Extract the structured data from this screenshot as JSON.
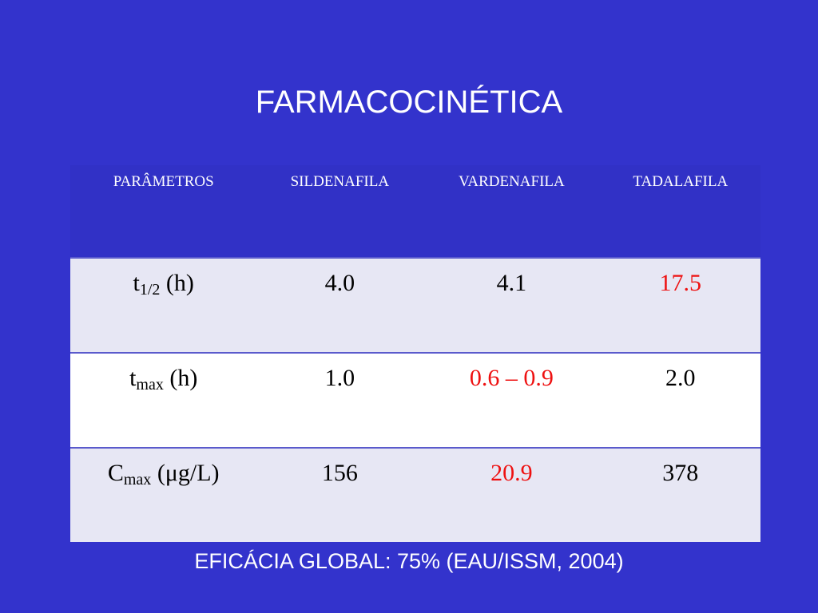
{
  "title": "FARMACOCINÉTICA",
  "table": {
    "header": [
      "PARÂMETROS",
      "SILDENAFILA",
      "VARDENAFILA",
      "TADALAFILA"
    ],
    "rows": [
      {
        "label": {
          "symbol": "t",
          "subscript": "1/2",
          "unit": "(h)"
        },
        "cells": [
          "4.0",
          "4.1",
          "17.5"
        ]
      },
      {
        "label": {
          "symbol": "t",
          "subscript": "max",
          "unit": "(h)"
        },
        "cells": [
          "1.0",
          "0.6 – 0.9",
          "2.0"
        ]
      },
      {
        "label": {
          "symbol": "C",
          "subscript": "max",
          "unit": "(μg/L)"
        },
        "cells": [
          "156",
          "20.9",
          "378"
        ]
      }
    ],
    "highlight": {
      "color": "#ee1111",
      "cells": [
        [
          0,
          2
        ],
        [
          1,
          1
        ],
        [
          2,
          1
        ]
      ]
    }
  },
  "footer": "EFICÁCIA GLOBAL: 75% (EAU/ISSM, 2004)"
}
